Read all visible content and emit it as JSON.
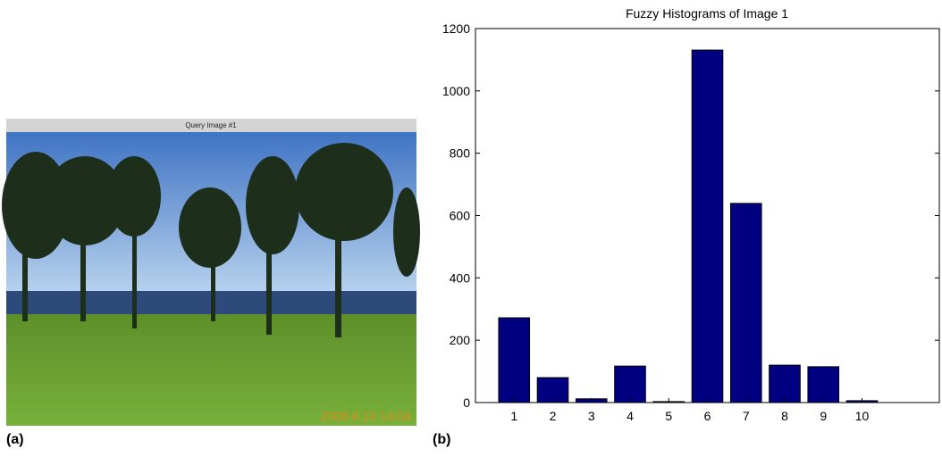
{
  "panel_a": {
    "label": "(a)",
    "image_title": "Query Image #1",
    "timestamp": "2008 6 10 14:04"
  },
  "panel_b": {
    "label": "(b)"
  },
  "chart_data": {
    "type": "bar",
    "title": "Fuzzy Histograms of Image 1",
    "x": [
      1,
      2,
      3,
      4,
      5,
      6,
      7,
      8,
      9,
      10
    ],
    "values": [
      272,
      80,
      12,
      117,
      3,
      1131,
      639,
      120,
      115,
      6
    ],
    "color": "#000080",
    "xlim": [
      0,
      12
    ],
    "xticks": [
      1,
      2,
      3,
      4,
      5,
      6,
      7,
      8,
      9,
      10
    ],
    "ylim": [
      0,
      1200
    ],
    "yticks": [
      0,
      200,
      400,
      600,
      800,
      1000,
      1200
    ]
  }
}
